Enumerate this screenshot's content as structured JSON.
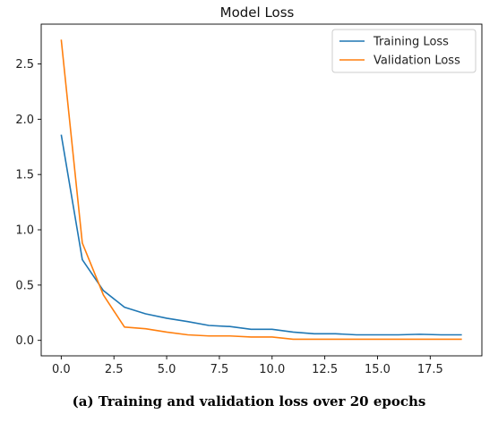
{
  "caption": "(a) Training and validation loss over 20 epochs",
  "chart_data": {
    "type": "line",
    "title": "Model Loss",
    "xlabel": "",
    "ylabel": "",
    "xlim": [
      -0.95,
      19.95
    ],
    "ylim": [
      -0.14,
      2.86
    ],
    "xticks": [
      0.0,
      2.5,
      5.0,
      7.5,
      10.0,
      12.5,
      15.0,
      17.5
    ],
    "xtick_labels": [
      "0.0",
      "2.5",
      "5.0",
      "7.5",
      "10.0",
      "12.5",
      "15.0",
      "17.5"
    ],
    "yticks": [
      0.0,
      0.5,
      1.0,
      1.5,
      2.0,
      2.5
    ],
    "ytick_labels": [
      "0.0",
      "0.5",
      "1.0",
      "1.5",
      "2.0",
      "2.5"
    ],
    "grid": false,
    "legend_position": "top-right",
    "x": [
      0,
      1,
      2,
      3,
      4,
      5,
      6,
      7,
      8,
      9,
      10,
      11,
      12,
      13,
      14,
      15,
      16,
      17,
      18,
      19
    ],
    "series": [
      {
        "name": "Training Loss",
        "color": "#1f77b4",
        "values": [
          1.86,
          0.73,
          0.45,
          0.3,
          0.24,
          0.2,
          0.17,
          0.135,
          0.125,
          0.1,
          0.1,
          0.075,
          0.06,
          0.06,
          0.05,
          0.05,
          0.05,
          0.055,
          0.05,
          0.05
        ]
      },
      {
        "name": "Validation Loss",
        "color": "#ff7f0e",
        "values": [
          2.72,
          0.88,
          0.41,
          0.12,
          0.105,
          0.075,
          0.05,
          0.04,
          0.04,
          0.03,
          0.03,
          0.01,
          0.01,
          0.01,
          0.01,
          0.01,
          0.01,
          0.01,
          0.01,
          0.01
        ]
      }
    ]
  }
}
